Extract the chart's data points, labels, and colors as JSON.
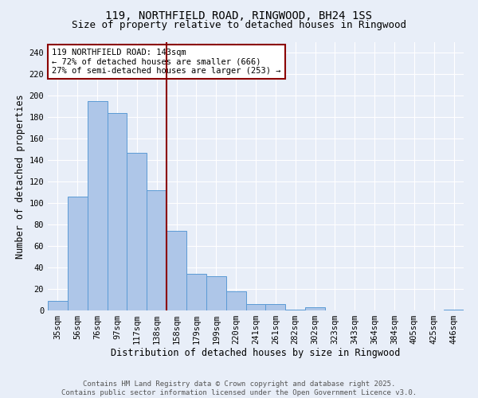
{
  "title": "119, NORTHFIELD ROAD, RINGWOOD, BH24 1SS",
  "subtitle": "Size of property relative to detached houses in Ringwood",
  "xlabel": "Distribution of detached houses by size in Ringwood",
  "ylabel": "Number of detached properties",
  "categories": [
    "35sqm",
    "56sqm",
    "76sqm",
    "97sqm",
    "117sqm",
    "138sqm",
    "158sqm",
    "179sqm",
    "199sqm",
    "220sqm",
    "241sqm",
    "261sqm",
    "282sqm",
    "302sqm",
    "323sqm",
    "343sqm",
    "364sqm",
    "384sqm",
    "405sqm",
    "425sqm",
    "446sqm"
  ],
  "values": [
    9,
    106,
    195,
    184,
    147,
    112,
    74,
    34,
    32,
    18,
    6,
    6,
    1,
    3,
    0,
    0,
    0,
    0,
    0,
    0,
    1
  ],
  "bar_color": "#aec6e8",
  "bar_edge_color": "#5b9bd5",
  "vline_x": 5.5,
  "vline_color": "#8b0000",
  "annotation_text": "119 NORTHFIELD ROAD: 143sqm\n← 72% of detached houses are smaller (666)\n27% of semi-detached houses are larger (253) →",
  "annotation_box_color": "#ffffff",
  "annotation_box_edge": "#8b0000",
  "ylim": [
    0,
    250
  ],
  "yticks": [
    0,
    20,
    40,
    60,
    80,
    100,
    120,
    140,
    160,
    180,
    200,
    220,
    240
  ],
  "footer_text": "Contains HM Land Registry data © Crown copyright and database right 2025.\nContains public sector information licensed under the Open Government Licence v3.0.",
  "bg_color": "#e8eef8",
  "plot_bg_color": "#e8eef8",
  "grid_color": "#ffffff",
  "title_fontsize": 10,
  "subtitle_fontsize": 9,
  "axis_label_fontsize": 8.5,
  "tick_fontsize": 7.5,
  "annotation_fontsize": 7.5,
  "footer_fontsize": 6.5
}
